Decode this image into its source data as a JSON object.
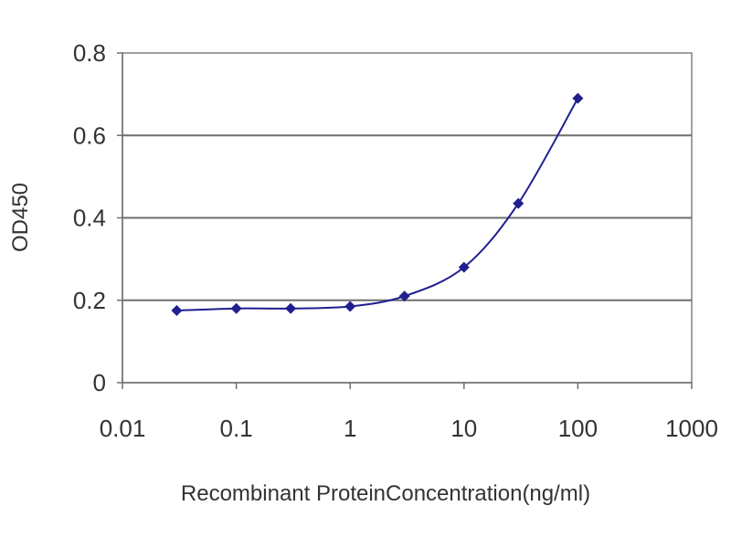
{
  "chart_data": {
    "type": "line",
    "title": "",
    "xlabel": "Recombinant ProteinConcentration(ng/ml)",
    "ylabel": "OD450",
    "x_scale": "log",
    "xlim": [
      0.01,
      1000
    ],
    "ylim": [
      0,
      0.8
    ],
    "x_ticks": [
      {
        "value": 0.01,
        "label": "0.01"
      },
      {
        "value": 0.1,
        "label": "0.1"
      },
      {
        "value": 1,
        "label": "1"
      },
      {
        "value": 10,
        "label": "10"
      },
      {
        "value": 100,
        "label": "100"
      },
      {
        "value": 1000,
        "label": "1000"
      }
    ],
    "y_ticks": [
      {
        "value": 0,
        "label": "0"
      },
      {
        "value": 0.2,
        "label": "0.2"
      },
      {
        "value": 0.4,
        "label": "0.4"
      },
      {
        "value": 0.6,
        "label": "0.6"
      },
      {
        "value": 0.8,
        "label": "0.8"
      }
    ],
    "grid": "horizontal",
    "legend": "none",
    "series": [
      {
        "color": "#1f1f8f",
        "x": [
          0.03,
          0.1,
          0.3,
          1,
          3,
          10,
          30,
          100
        ],
        "y": [
          0.175,
          0.18,
          0.18,
          0.185,
          0.21,
          0.28,
          0.435,
          0.69
        ]
      }
    ]
  }
}
